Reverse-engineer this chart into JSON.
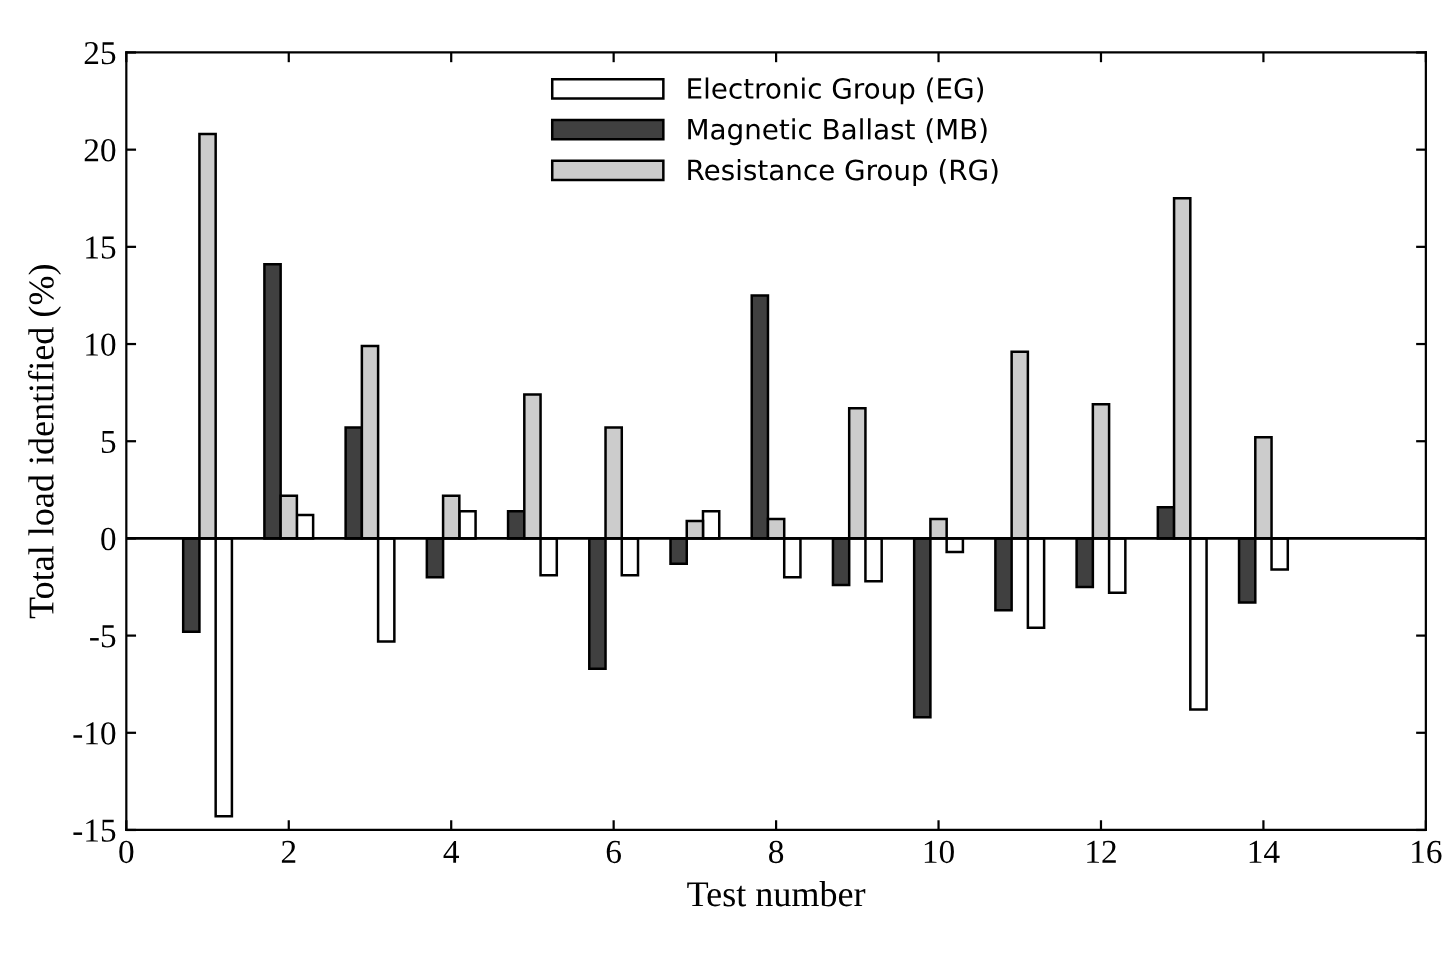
{
  "chart_data": {
    "type": "bar",
    "xlabel": "Test number",
    "ylabel": "Total load identified (%)",
    "xlim": [
      0,
      16
    ],
    "xticks": [
      0,
      2,
      4,
      6,
      8,
      10,
      12,
      14,
      16
    ],
    "ylim": [
      -15,
      25
    ],
    "yticks": [
      -15,
      -10,
      -5,
      0,
      5,
      10,
      15,
      20,
      25
    ],
    "legend": "top",
    "grid": false,
    "ref_lines": [
      {
        "axis": "y",
        "value": 0,
        "color": "#000000"
      }
    ],
    "series": [
      {
        "name": "Electronic Group (EG)",
        "color": "#ffffff",
        "x": [
          1.2,
          2.2,
          3.2,
          4.2,
          5.2,
          6.2,
          7.2,
          8.2,
          9.2,
          10.2,
          11.2,
          12.2,
          13.2,
          14.2
        ],
        "values": [
          -14.3,
          1.2,
          -5.3,
          1.4,
          -1.9,
          -1.9,
          1.4,
          -2.0,
          -2.2,
          -0.7,
          -4.6,
          -2.8,
          -8.8,
          -1.6
        ]
      },
      {
        "name": "Magnetic Ballast (MB)",
        "color": "#404040",
        "x": [
          0.8,
          1.8,
          2.8,
          3.8,
          4.8,
          5.8,
          6.8,
          7.8,
          8.8,
          9.8,
          10.8,
          11.8,
          12.8,
          13.8
        ],
        "values": [
          -4.8,
          14.1,
          5.7,
          -2.0,
          1.4,
          -6.7,
          -1.3,
          12.5,
          -2.4,
          -9.2,
          -3.7,
          -2.5,
          1.6,
          -3.3
        ]
      },
      {
        "name": "Resistance Group (RG)",
        "color": "#cccccc",
        "x": [
          1,
          2,
          3,
          4,
          5,
          6,
          7,
          8,
          9,
          10,
          11,
          12,
          13,
          14
        ],
        "values": [
          20.8,
          2.2,
          9.9,
          2.2,
          7.4,
          5.7,
          0.9,
          1.0,
          6.7,
          1.0,
          9.6,
          6.9,
          17.5,
          5.2
        ]
      }
    ]
  }
}
